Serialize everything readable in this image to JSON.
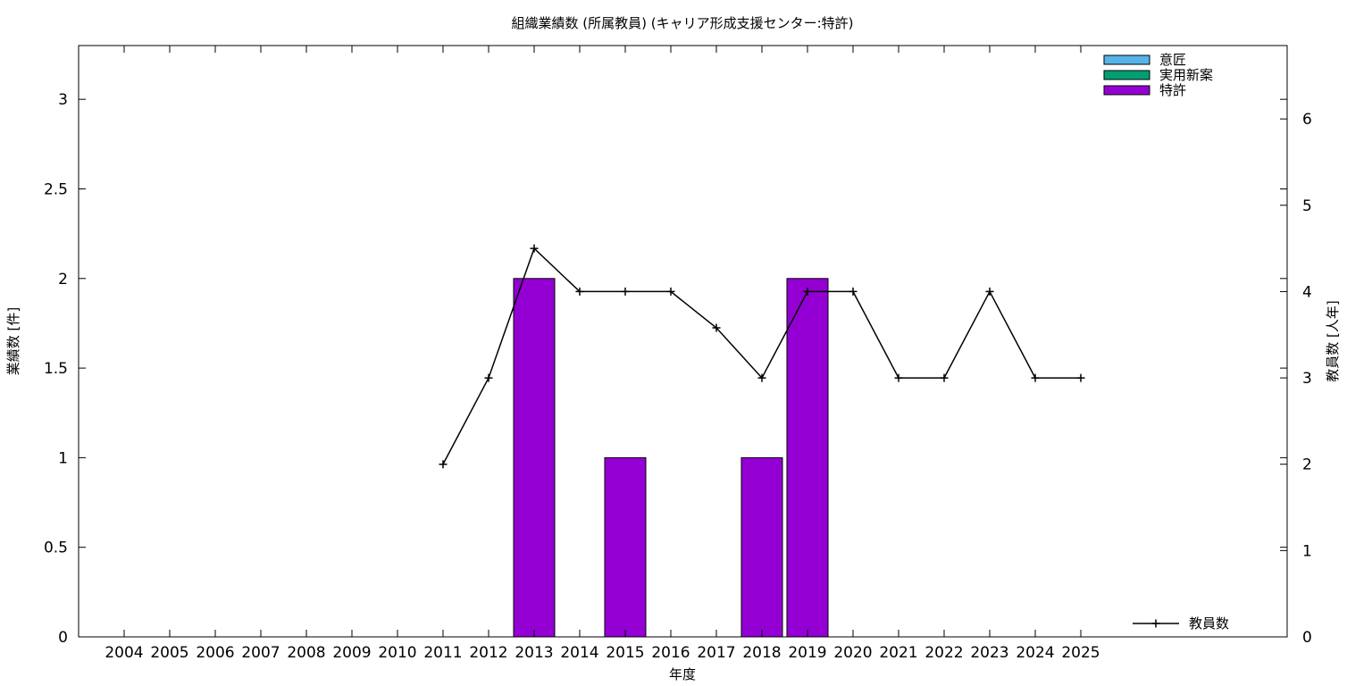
{
  "chart_data": {
    "type": "bar",
    "title": "組織業績数 (所属教員) (キャリア形成支援センター:特許)",
    "xlabel": "年度",
    "ylabel": "業績数 [件]",
    "y2label": "教員数 [人年]",
    "categories": [
      "2004",
      "2005",
      "2006",
      "2007",
      "2008",
      "2009",
      "2010",
      "2011",
      "2012",
      "2013",
      "2014",
      "2015",
      "2016",
      "2017",
      "2018",
      "2019",
      "2020",
      "2021",
      "2022",
      "2023",
      "2024",
      "2025"
    ],
    "ylim": [
      0,
      3.3
    ],
    "y2lim": [
      0,
      6.85
    ],
    "yticks": [
      "0",
      "0.5",
      "1",
      "1.5",
      "2",
      "2.5",
      "3"
    ],
    "y2ticks": [
      "0",
      "1",
      "2",
      "3",
      "4",
      "5",
      "6"
    ],
    "grid": false,
    "legend_position": "top-right",
    "series": [
      {
        "name": "意匠",
        "color": "#56b4e9",
        "axis": "left",
        "kind": "bar",
        "values": [
          0,
          0,
          0,
          0,
          0,
          0,
          0,
          0,
          0,
          0,
          0,
          0,
          0,
          0,
          0,
          0,
          0,
          0,
          0,
          0,
          0,
          0
        ]
      },
      {
        "name": "実用新案",
        "color": "#009e73",
        "axis": "left",
        "kind": "bar",
        "values": [
          0,
          0,
          0,
          0,
          0,
          0,
          0,
          0,
          0,
          0,
          0,
          0,
          0,
          0,
          0,
          0,
          0,
          0,
          0,
          0,
          0,
          0
        ]
      },
      {
        "name": "特許",
        "color": "#9400d3",
        "axis": "left",
        "kind": "bar",
        "values": [
          0,
          0,
          0,
          0,
          0,
          0,
          0,
          0,
          0,
          2,
          0,
          1,
          0,
          0,
          1,
          2,
          0,
          0,
          0,
          0,
          0,
          0
        ]
      }
    ],
    "line_series": {
      "name": "教員数",
      "color": "#000000",
      "axis": "right",
      "kind": "line",
      "values": [
        null,
        null,
        null,
        null,
        null,
        null,
        null,
        2,
        3,
        4.5,
        4,
        4,
        4,
        3.58,
        3,
        4,
        4,
        3,
        3,
        4,
        3,
        3
      ]
    }
  }
}
